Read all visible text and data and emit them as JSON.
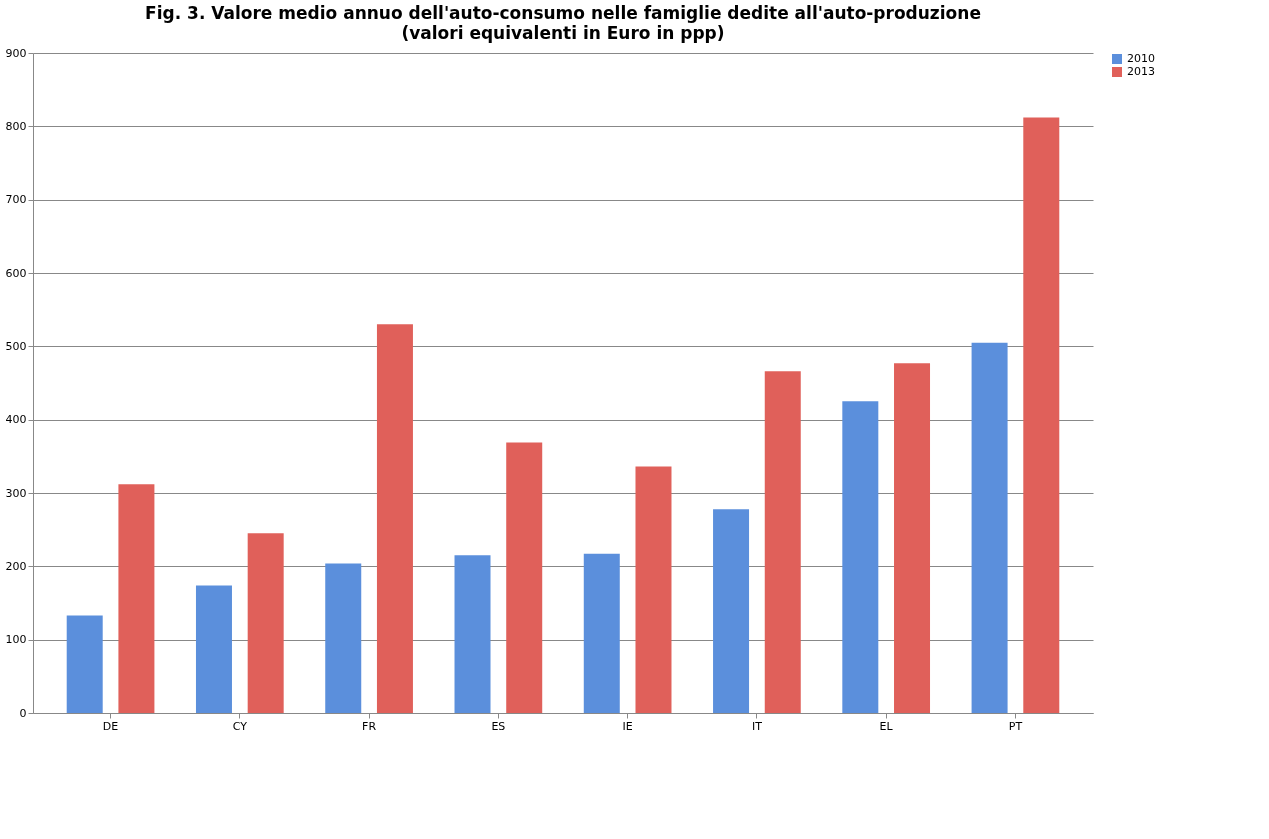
{
  "chart_data": {
    "type": "bar",
    "title": "Fig. 3. Valore medio annuo dell'auto-consumo  nelle famiglie dedite all'auto-produzione",
    "subtitle": "(valori equivalenti in Euro in ppp)",
    "categories": [
      "DE",
      "CY",
      "FR",
      "ES",
      "IE",
      "IT",
      "EL",
      "PT"
    ],
    "series": [
      {
        "name": "2010",
        "color": "#5b8fdc",
        "values": [
          133,
          174,
          204,
          215,
          217,
          278,
          425,
          505
        ]
      },
      {
        "name": "2013",
        "color": "#e0605a",
        "values": [
          312,
          245,
          530,
          369,
          336,
          466,
          477,
          812
        ]
      }
    ],
    "ylim": [
      0,
      900
    ],
    "yticks": [
      0,
      100,
      200,
      300,
      400,
      500,
      600,
      700,
      800,
      900
    ],
    "grid": "y",
    "legend": "right"
  }
}
